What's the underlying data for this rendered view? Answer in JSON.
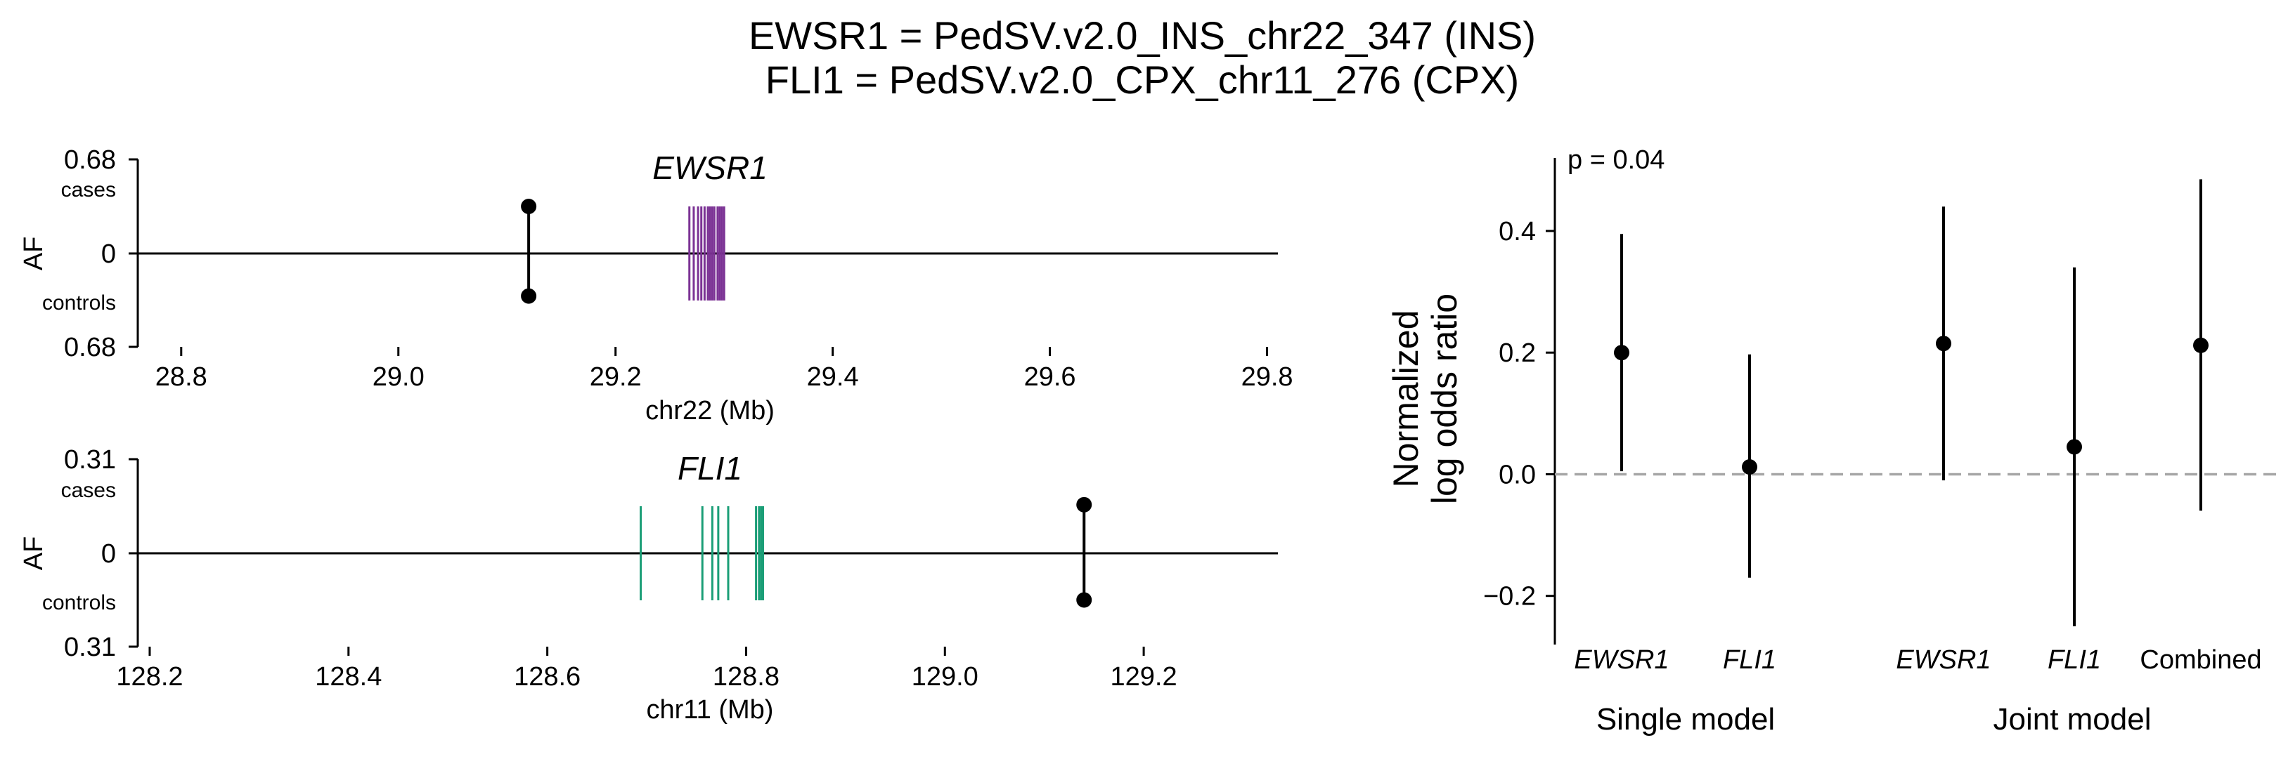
{
  "title": {
    "line1": "EWSR1 = PedSV.v2.0_INS_chr22_347 (INS)",
    "line2": "FLI1 = PedSV.v2.0_CPX_chr11_276 (CPX)"
  },
  "chart_data": [
    {
      "type": "scatter",
      "panel": "EWSR1 locus",
      "gene_label": "EWSR1",
      "gene_color": "#7b3294",
      "xlabel": "chr22 (Mb)",
      "ylabel": "AF",
      "xlim": [
        28.76,
        29.81
      ],
      "x_ticks": [
        "28.8",
        "29.0",
        "29.2",
        "29.4",
        "29.6",
        "29.8"
      ],
      "y_top_label": "0.68",
      "y_zero_label": "0",
      "y_bottom_label": "0.68",
      "cases_label": "cases",
      "controls_label": "controls",
      "af_max": 0.68,
      "gene_exons_mb": [
        29.268,
        29.272,
        29.276,
        29.279,
        29.282,
        29.285,
        29.287,
        29.289,
        29.291,
        29.294,
        29.296,
        29.298,
        29.3
      ],
      "variant": {
        "position_mb": 29.12,
        "af_cases": 0.34,
        "af_controls": 0.31
      }
    },
    {
      "type": "scatter",
      "panel": "FLI1 locus",
      "gene_label": "FLI1",
      "gene_color": "#1b9e77",
      "xlabel": "chr11 (Mb)",
      "ylabel": "AF",
      "xlim": [
        128.188,
        129.335
      ],
      "x_ticks": [
        "128.2",
        "128.4",
        "128.6",
        "128.8",
        "129.0",
        "129.2"
      ],
      "y_top_label": "0.31",
      "y_zero_label": "0",
      "y_bottom_label": "0.31",
      "cases_label": "cases",
      "controls_label": "controls",
      "af_max": 0.31,
      "gene_exons_mb": [
        128.694,
        128.756,
        128.766,
        128.772,
        128.782,
        128.81,
        128.813,
        128.815,
        128.817
      ],
      "variant": {
        "position_mb": 129.14,
        "af_cases": 0.16,
        "af_controls": 0.155
      }
    },
    {
      "type": "scatter",
      "panel": "Odds ratio forest plot",
      "ylabel_line1": "Normalized",
      "ylabel_line2": "log odds ratio",
      "ylim": [
        -0.28,
        0.52
      ],
      "y_ticks": [
        "−0.2",
        "0.0",
        "0.2",
        "0.4"
      ],
      "p_value": "p = 0.04",
      "reference_line": 0.0,
      "groups": [
        "Single model",
        "Joint model"
      ],
      "points": [
        {
          "label": "EWSR1",
          "italic": true,
          "group": "Single model",
          "estimate": 0.2,
          "ci": [
            0.005,
            0.395
          ]
        },
        {
          "label": "FLI1",
          "italic": true,
          "group": "Single model",
          "estimate": 0.012,
          "ci": [
            -0.17,
            0.197
          ]
        },
        {
          "label": "EWSR1",
          "italic": true,
          "group": "Joint model",
          "estimate": 0.215,
          "ci": [
            -0.01,
            0.44
          ]
        },
        {
          "label": "FLI1",
          "italic": true,
          "group": "Joint model",
          "estimate": 0.045,
          "ci": [
            -0.25,
            0.34
          ]
        },
        {
          "label": "Combined",
          "italic": false,
          "group": "Joint model",
          "estimate": 0.212,
          "ci": [
            -0.06,
            0.485
          ]
        }
      ]
    }
  ]
}
